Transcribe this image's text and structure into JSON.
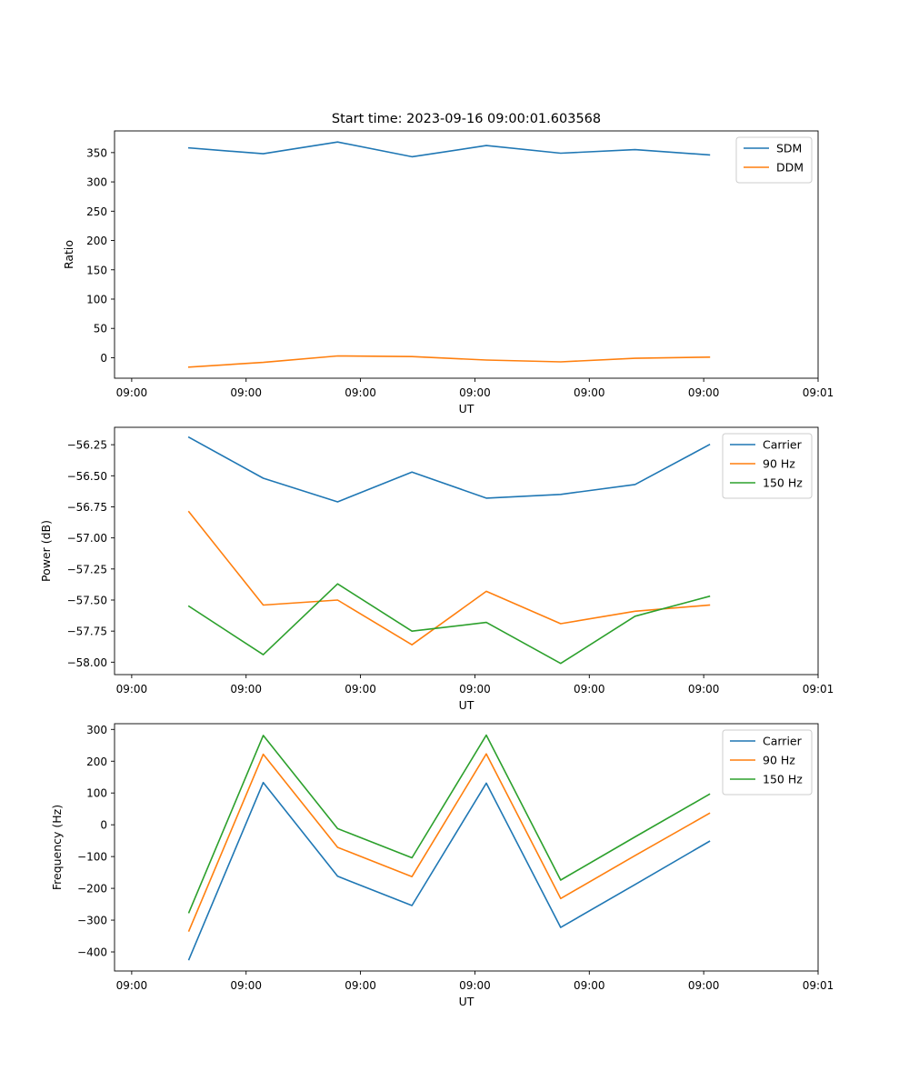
{
  "figure_title": "Start time: 2023-09-16 09:00:01.603568",
  "colors": {
    "blue": "#1f77b4",
    "orange": "#ff7f0e",
    "green": "#2ca02c"
  },
  "chart_data": [
    {
      "type": "line",
      "title": "Start time: 2023-09-16 09:00:01.603568",
      "xlabel": "UT",
      "ylabel": "Ratio",
      "x": [
        0.5,
        1.15,
        1.8,
        2.45,
        3.1,
        3.75,
        4.4,
        5.05
      ],
      "xlim": [
        -0.15,
        6.0
      ],
      "xticks": [
        0,
        1,
        2,
        3,
        4,
        5,
        6
      ],
      "xticklabels": [
        "09:00",
        "09:00",
        "09:00",
        "09:00",
        "09:00",
        "09:00",
        "09:01"
      ],
      "ylim": [
        -35,
        387
      ],
      "yticks": [
        0,
        50,
        100,
        150,
        200,
        250,
        300,
        350
      ],
      "yticklabels": [
        "0",
        "50",
        "100",
        "150",
        "200",
        "250",
        "300",
        "350"
      ],
      "legend_position": "top-right",
      "series": [
        {
          "name": "SDM",
          "color": "#1f77b4",
          "values": [
            358,
            348,
            368,
            343,
            362,
            349,
            355,
            346
          ]
        },
        {
          "name": "DDM",
          "color": "#ff7f0e",
          "values": [
            -16,
            -8,
            3,
            2,
            -4,
            -7,
            -1,
            1
          ]
        }
      ]
    },
    {
      "type": "line",
      "title": "",
      "xlabel": "UT",
      "ylabel": "Power (dB)",
      "x": [
        0.5,
        1.15,
        1.8,
        2.45,
        3.1,
        3.75,
        4.4,
        5.05
      ],
      "xlim": [
        -0.15,
        6.0
      ],
      "xticks": [
        0,
        1,
        2,
        3,
        4,
        5,
        6
      ],
      "xticklabels": [
        "09:00",
        "09:00",
        "09:00",
        "09:00",
        "09:00",
        "09:00",
        "09:01"
      ],
      "ylim": [
        -58.1,
        -56.11
      ],
      "yticks": [
        -58.0,
        -57.75,
        -57.5,
        -57.25,
        -57.0,
        -56.75,
        -56.5,
        -56.25
      ],
      "yticklabels": [
        "−58.00",
        "−57.75",
        "−57.50",
        "−57.25",
        "−57.00",
        "−56.75",
        "−56.50",
        "−56.25"
      ],
      "legend_position": "top-right",
      "series": [
        {
          "name": "Carrier",
          "color": "#1f77b4",
          "values": [
            -56.19,
            -56.52,
            -56.71,
            -56.47,
            -56.68,
            -56.65,
            -56.57,
            -56.25
          ]
        },
        {
          "name": "90 Hz",
          "color": "#ff7f0e",
          "values": [
            -56.79,
            -57.54,
            -57.5,
            -57.86,
            -57.43,
            -57.69,
            -57.59,
            -57.54
          ]
        },
        {
          "name": "150 Hz",
          "color": "#2ca02c",
          "values": [
            -57.55,
            -57.94,
            -57.37,
            -57.75,
            -57.68,
            -58.01,
            -57.63,
            -57.47
          ]
        }
      ]
    },
    {
      "type": "line",
      "title": "",
      "xlabel": "UT",
      "ylabel": "Frequency (Hz)",
      "x": [
        0.5,
        1.15,
        1.8,
        2.45,
        3.1,
        3.75,
        4.4,
        5.05
      ],
      "xlim": [
        -0.15,
        6.0
      ],
      "xticks": [
        0,
        1,
        2,
        3,
        4,
        5,
        6
      ],
      "xticklabels": [
        "09:00",
        "09:00",
        "09:00",
        "09:00",
        "09:00",
        "09:00",
        "09:01"
      ],
      "ylim": [
        -460,
        318
      ],
      "yticks": [
        -400,
        -300,
        -200,
        -100,
        0,
        100,
        200,
        300
      ],
      "yticklabels": [
        "−400",
        "−300",
        "−200",
        "−100",
        "0",
        "100",
        "200",
        "300"
      ],
      "legend_position": "top-right",
      "series": [
        {
          "name": "Carrier",
          "color": "#1f77b4",
          "values": [
            -424,
            133,
            -162,
            -254,
            131,
            -323,
            -188,
            -52
          ]
        },
        {
          "name": "90 Hz",
          "color": "#ff7f0e",
          "values": [
            -334,
            222,
            -71,
            -163,
            223,
            -232,
            -97,
            36
          ]
        },
        {
          "name": "150 Hz",
          "color": "#2ca02c",
          "values": [
            -276,
            281,
            -12,
            -104,
            282,
            -174,
            -38,
            96
          ]
        }
      ]
    }
  ]
}
